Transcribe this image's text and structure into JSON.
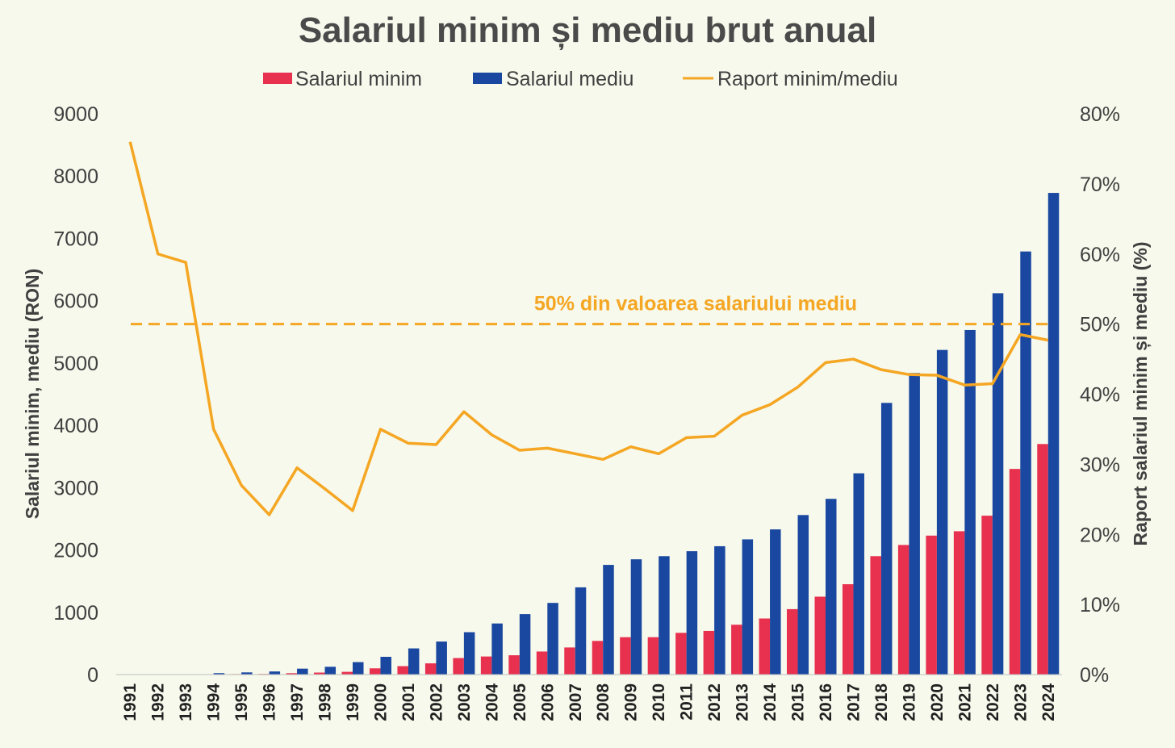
{
  "chart_data": {
    "type": "bar",
    "title": "Salariul minim și mediu brut anual",
    "categories": [
      "1991",
      "1992",
      "1993",
      "1994",
      "1995",
      "1996",
      "1997",
      "1998",
      "1999",
      "2000",
      "2001",
      "2002",
      "2003",
      "2004",
      "2005",
      "2006",
      "2007",
      "2008",
      "2009",
      "2010",
      "2011",
      "2012",
      "2013",
      "2014",
      "2015",
      "2016",
      "2017",
      "2018",
      "2019",
      "2020",
      "2021",
      "2022",
      "2023",
      "2024"
    ],
    "series": [
      {
        "name": "Salariul minim",
        "kind": "bar",
        "axis": "left",
        "color": "#e8314f",
        "values": [
          1,
          1,
          2,
          6,
          8,
          10,
          22,
          32,
          44,
          100,
          135,
          180,
          265,
          290,
          310,
          370,
          435,
          540,
          600,
          600,
          670,
          700,
          800,
          900,
          1050,
          1250,
          1450,
          1900,
          2080,
          2230,
          2300,
          2550,
          3300,
          3700
        ]
      },
      {
        "name": "Salariul mediu",
        "kind": "bar",
        "axis": "left",
        "color": "#1a48a0",
        "values": [
          1,
          2,
          3,
          23,
          35,
          50,
          95,
          125,
          200,
          285,
          420,
          530,
          680,
          820,
          970,
          1150,
          1400,
          1760,
          1850,
          1900,
          1980,
          2060,
          2170,
          2330,
          2560,
          2820,
          3230,
          4360,
          4840,
          5210,
          5530,
          6120,
          6790,
          7730
        ]
      },
      {
        "name": "Raport minim/mediu",
        "kind": "line",
        "axis": "right",
        "color": "#f5a623",
        "values": [
          76,
          60,
          58.8,
          35,
          27,
          22.8,
          29.5,
          26.5,
          23.4,
          35,
          33,
          32.8,
          37.5,
          34.2,
          32,
          32.3,
          31.5,
          30.7,
          32.5,
          31.5,
          33.8,
          34,
          37,
          38.5,
          41,
          44.5,
          45,
          43.5,
          42.8,
          42.7,
          41.3,
          41.5,
          48.5,
          47.7
        ]
      }
    ],
    "reference_line": {
      "value": 50,
      "axis": "right",
      "label": "50% din valoarea salariului mediu",
      "color": "#f5a623",
      "style": "dashed"
    },
    "ylabel": "Salariul minim, mediu (RON)",
    "y2label": "Raport salariul minim și mediu (%)",
    "ylim": [
      0,
      9000
    ],
    "yticks": [
      0,
      1000,
      2000,
      3000,
      4000,
      5000,
      6000,
      7000,
      8000,
      9000
    ],
    "y2lim": [
      0,
      80
    ],
    "y2ticks": [
      "0%",
      "10%",
      "20%",
      "30%",
      "40%",
      "50%",
      "60%",
      "70%",
      "80%"
    ],
    "legend": "top-center",
    "grid": false
  }
}
